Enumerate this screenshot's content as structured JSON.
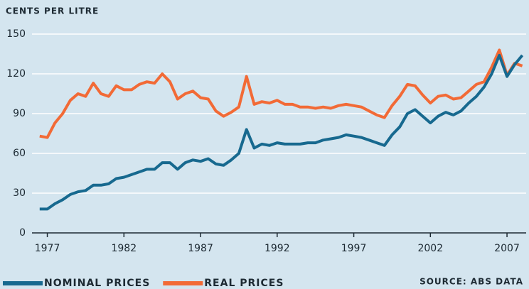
{
  "chart_data": {
    "type": "line",
    "y_label": "CENTS PER LITRE",
    "annotation": "SOURCE: ABS DATA",
    "x": [
      1976.5,
      1977,
      1977.5,
      1978,
      1978.5,
      1979,
      1979.5,
      1980,
      1980.5,
      1981,
      1981.5,
      1982,
      1982.5,
      1983,
      1983.5,
      1984,
      1984.5,
      1985,
      1985.5,
      1986,
      1986.5,
      1987,
      1987.5,
      1988,
      1988.5,
      1989,
      1989.5,
      1990,
      1990.5,
      1991,
      1991.5,
      1992,
      1992.5,
      1993,
      1993.5,
      1994,
      1994.5,
      1995,
      1995.5,
      1996,
      1996.5,
      1997,
      1997.5,
      1998,
      1998.5,
      1999,
      1999.5,
      2000,
      2000.5,
      2001,
      2001.5,
      2002,
      2002.5,
      2003,
      2003.5,
      2004,
      2004.5,
      2005,
      2005.5,
      2006,
      2006.5,
      2007,
      2007.5,
      2008
    ],
    "series": [
      {
        "name": "NOMINAL PRICES",
        "color": "#17698f",
        "values": [
          18,
          18,
          22,
          25,
          29,
          31,
          32,
          36,
          36,
          37,
          41,
          42,
          44,
          46,
          48,
          48,
          53,
          53,
          48,
          53,
          55,
          54,
          56,
          52,
          51,
          55,
          60,
          78,
          64,
          67,
          66,
          68,
          67,
          67,
          67,
          68,
          68,
          70,
          71,
          72,
          74,
          73,
          72,
          70,
          68,
          66,
          74,
          80,
          90,
          93,
          88,
          83,
          88,
          91,
          89,
          92,
          98,
          103,
          110,
          120,
          134,
          118,
          127,
          134
        ]
      },
      {
        "name": "REAL PRICES",
        "color": "#f26a36",
        "values": [
          73,
          72,
          83,
          90,
          100,
          105,
          103,
          113,
          105,
          103,
          111,
          108,
          108,
          112,
          114,
          113,
          120,
          114,
          101,
          105,
          107,
          102,
          101,
          92,
          88,
          91,
          95,
          118,
          97,
          99,
          98,
          100,
          97,
          97,
          95,
          95,
          94,
          95,
          94,
          96,
          97,
          96,
          95,
          92,
          89,
          87,
          96,
          103,
          112,
          111,
          104,
          98,
          103,
          104,
          101,
          102,
          107,
          112,
          114,
          125,
          138,
          119,
          128,
          126
        ]
      }
    ],
    "xlim": [
      1976,
      2008.25
    ],
    "xticks": [
      1977,
      1982,
      1987,
      1992,
      1997,
      2002,
      2007
    ],
    "ylim": [
      0,
      150
    ],
    "yticks": [
      0,
      30,
      60,
      90,
      120,
      150
    ],
    "grid": true
  }
}
